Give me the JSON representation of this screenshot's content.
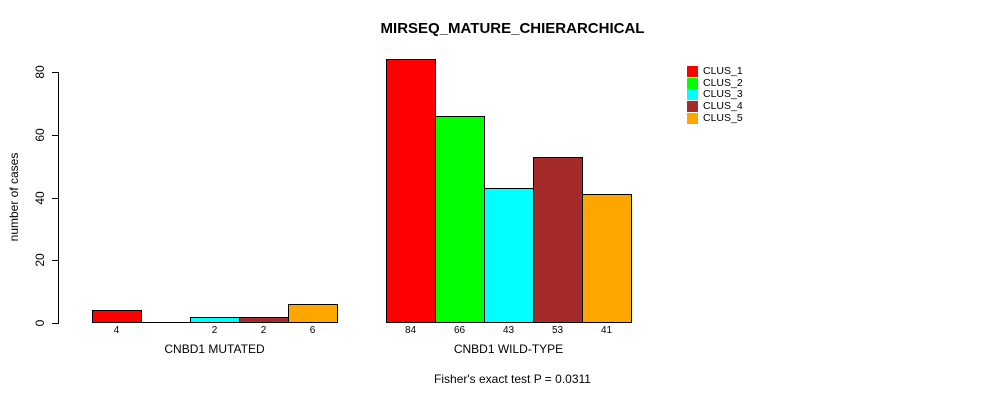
{
  "chart_data": {
    "type": "bar",
    "title": "MIRSEQ_MATURE_CHIERARCHICAL",
    "ylabel": "number of cases",
    "sub_caption": "Fisher's exact test P = 0.0311",
    "categories": [
      "CNBD1 MUTATED",
      "CNBD1 WILD-TYPE"
    ],
    "series": [
      {
        "name": "CLUS_1",
        "color": "#ff0000",
        "values": [
          4,
          84
        ]
      },
      {
        "name": "CLUS_2",
        "color": "#00ff00",
        "values": [
          0,
          66
        ]
      },
      {
        "name": "CLUS_3",
        "color": "#00ffff",
        "values": [
          2,
          43
        ]
      },
      {
        "name": "CLUS_4",
        "color": "#a52a2a",
        "values": [
          2,
          53
        ]
      },
      {
        "name": "CLUS_5",
        "color": "#ffa500",
        "values": [
          6,
          41
        ]
      }
    ],
    "bar_value_labels": {
      "CNBD1 MUTATED": [
        "4",
        null,
        "2",
        "2",
        "6"
      ],
      "CNBD1 WILD-TYPE": [
        "84",
        "66",
        "43",
        "53",
        "41"
      ]
    },
    "yticks": [
      "0",
      "20",
      "40",
      "60",
      "80"
    ],
    "ylim": [
      0,
      84
    ],
    "grid": false,
    "legend_position": "top-right",
    "background_color": "#ffffff",
    "axis_color": "#000000",
    "bar_border_color": "#000000"
  }
}
